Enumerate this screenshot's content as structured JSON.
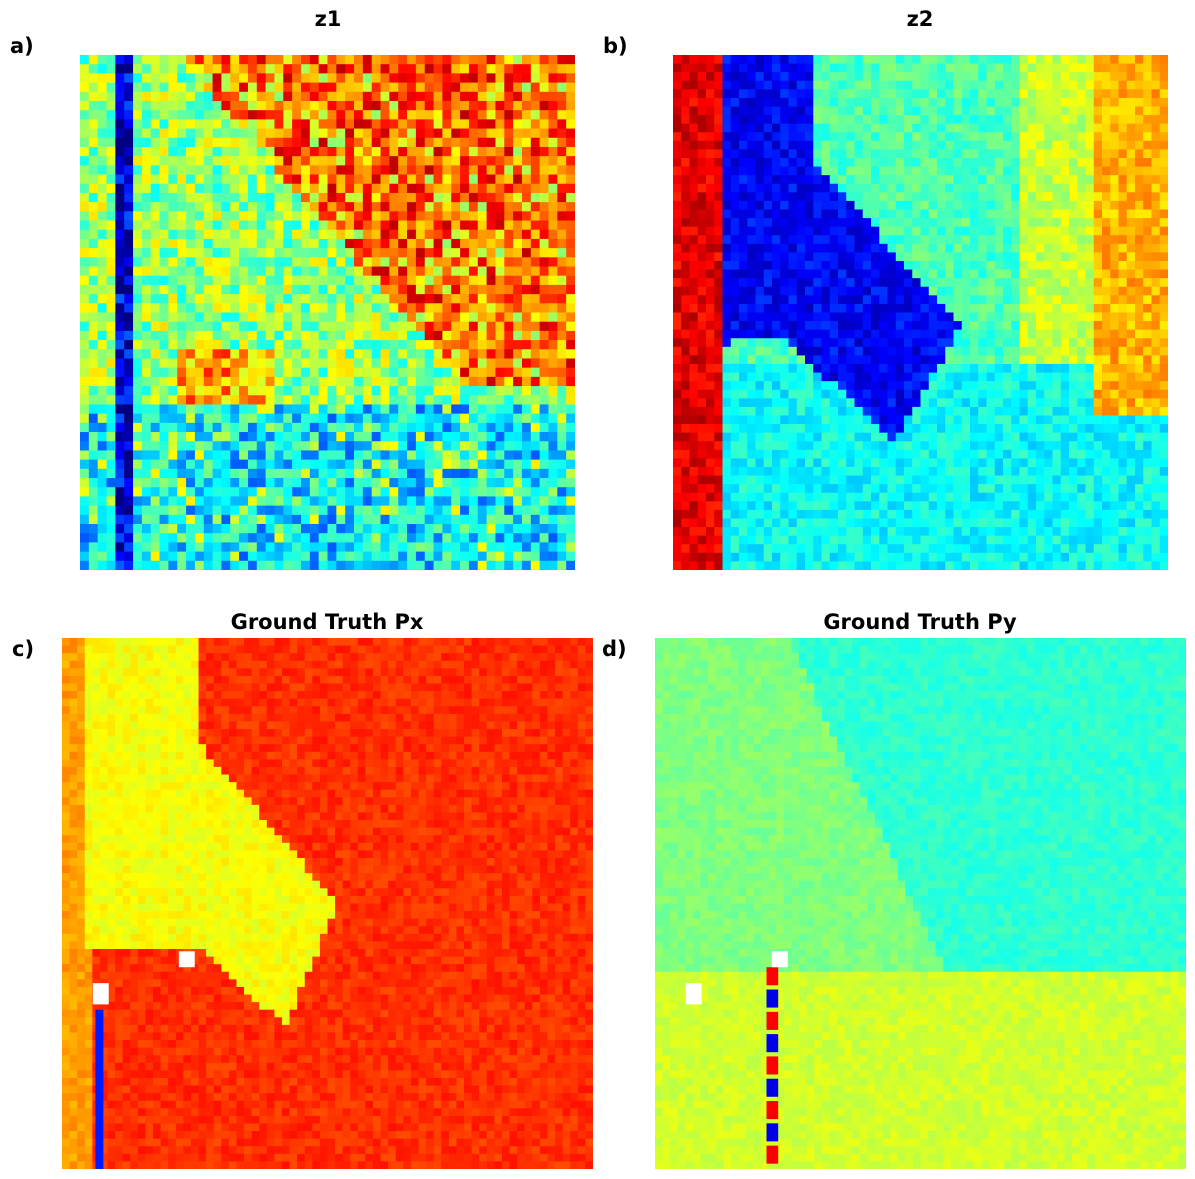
{
  "figure": {
    "colormap": "jet",
    "panels": [
      {
        "id": "a",
        "label": "a)",
        "title": "z1"
      },
      {
        "id": "b",
        "label": "b)",
        "title": "z2"
      },
      {
        "id": "c",
        "label": "c)",
        "title": "Ground Truth Px"
      },
      {
        "id": "d",
        "label": "d)",
        "title": "Ground Truth Py"
      }
    ]
  },
  "chart_data": [
    {
      "type": "heatmap",
      "title": "z1",
      "colormap": "jet",
      "axes": "off",
      "regions_description_values": {
        "background_level": 0.52,
        "upper_right_band_level": 0.8,
        "lower_band_level": 0.35,
        "left_stripe_level": 0.08
      }
    },
    {
      "type": "heatmap",
      "title": "z2",
      "colormap": "jet",
      "axes": "off",
      "regions_description_values": {
        "background_level": 0.45,
        "left_stripe_level": 0.9,
        "dark_wedge_level": 0.12,
        "right_edge_level": 0.7,
        "lower_region_level": 0.38
      }
    },
    {
      "type": "heatmap",
      "title": "Ground Truth Px",
      "colormap": "jet",
      "axes": "off",
      "regions_description_values": {
        "background_level": 0.83,
        "wedge_level": 0.62,
        "left_edge_level": 0.72,
        "stripe_level": 0.15
      }
    },
    {
      "type": "heatmap",
      "title": "Ground Truth Py",
      "colormap": "jet",
      "axes": "off",
      "regions_description_values": {
        "background_level": 0.5,
        "upper_right_level": 0.42,
        "lower_band_level": 0.58,
        "stripe_levels": [
          0.88,
          0.1
        ]
      }
    }
  ]
}
